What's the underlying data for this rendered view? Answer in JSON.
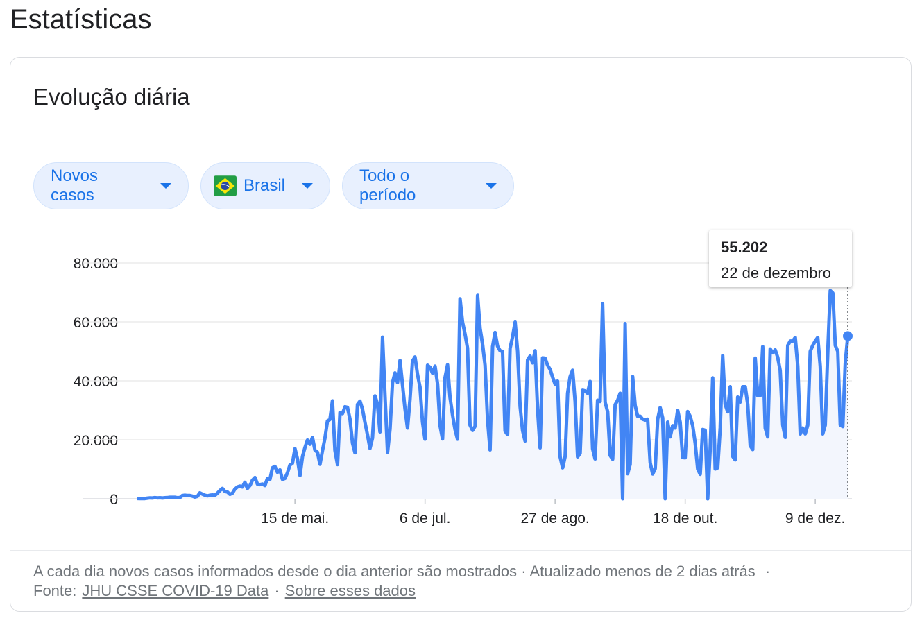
{
  "header": {
    "title": "Estatísticas"
  },
  "card": {
    "title": "Evolução diária"
  },
  "filters": [
    "Novos casos",
    "Brasil",
    "Todo o período"
  ],
  "chart_data": {
    "type": "line",
    "color": "#4285f4",
    "grid": true,
    "ylim": [
      0,
      80000
    ],
    "yticks": [
      0,
      {
        "value": 20000,
        "label": "20.000"
      },
      {
        "value": 40000,
        "label": "40.000"
      },
      {
        "value": 60000,
        "label": "60.000"
      },
      {
        "value": 80000,
        "label": "80.000"
      }
    ],
    "categories": [
      null,
      null,
      null,
      null,
      null,
      null,
      null,
      null,
      null,
      null,
      null,
      null,
      null,
      null,
      null,
      null,
      null,
      null,
      null,
      null,
      null,
      null,
      null,
      null,
      null,
      null,
      null,
      null,
      null,
      null,
      null,
      null,
      null,
      null,
      null,
      null,
      null,
      null,
      null,
      null,
      null,
      null,
      null,
      null,
      null,
      null,
      null,
      null,
      null,
      null,
      null,
      null,
      null,
      null,
      null,
      null,
      null,
      null,
      null,
      null,
      null,
      null,
      null,
      "15 de mai.",
      null,
      null,
      null,
      null,
      null,
      null,
      null,
      null,
      null,
      null,
      null,
      null,
      null,
      null,
      null,
      null,
      null,
      null,
      null,
      null,
      null,
      null,
      null,
      null,
      null,
      null,
      null,
      null,
      null,
      null,
      null,
      null,
      null,
      null,
      null,
      null,
      null,
      null,
      null,
      null,
      null,
      null,
      null,
      null,
      null,
      null,
      null,
      null,
      null,
      null,
      null,
      "6 de jul.",
      null,
      null,
      null,
      null,
      null,
      null,
      null,
      null,
      null,
      null,
      null,
      null,
      null,
      null,
      null,
      null,
      null,
      null,
      null,
      null,
      null,
      null,
      null,
      null,
      null,
      null,
      null,
      null,
      null,
      null,
      null,
      null,
      null,
      null,
      null,
      null,
      null,
      null,
      null,
      null,
      null,
      null,
      null,
      null,
      null,
      null,
      null,
      null,
      null,
      null,
      null,
      "27 de ago.",
      null,
      null,
      null,
      null,
      null,
      null,
      null,
      null,
      null,
      null,
      null,
      null,
      null,
      null,
      null,
      null,
      null,
      null,
      null,
      null,
      null,
      null,
      null,
      null,
      null,
      null,
      null,
      null,
      null,
      null,
      null,
      null,
      null,
      null,
      null,
      null,
      null,
      null,
      null,
      null,
      null,
      null,
      null,
      null,
      null,
      null,
      null,
      null,
      null,
      null,
      null,
      "18 de out.",
      null,
      null,
      null,
      null,
      null,
      null,
      null,
      null,
      null,
      null,
      null,
      null,
      null,
      null,
      null,
      null,
      null,
      null,
      null,
      null,
      null,
      null,
      null,
      null,
      null,
      null,
      null,
      null,
      null,
      null,
      null,
      null,
      null,
      null,
      null,
      null,
      null,
      null,
      null,
      null,
      null,
      null,
      null,
      null,
      null,
      null,
      null,
      null,
      null,
      null,
      null,
      "9 de dez.",
      null,
      null,
      null,
      null,
      null,
      null,
      null,
      null,
      null,
      null,
      null,
      null,
      null
    ],
    "values": [
      100,
      60,
      50,
      80,
      200,
      300,
      250,
      400,
      300,
      350,
      250,
      350,
      400,
      500,
      500,
      500,
      350,
      400,
      1100,
      1200,
      1100,
      1100,
      900,
      600,
      800,
      2000,
      1600,
      1200,
      1000,
      1200,
      1300,
      1200,
      1900,
      2800,
      3500,
      2500,
      2300,
      1500,
      1900,
      3300,
      4000,
      4300,
      4000,
      5600,
      3500,
      4500,
      6300,
      7200,
      5000,
      4800,
      5000,
      4500,
      6900,
      6600,
      10500,
      11000,
      9000,
      9800,
      6600,
      6900,
      8800,
      11400,
      12000,
      17000,
      13500,
      7900,
      14300,
      17400,
      19900,
      18500,
      20800,
      16500,
      15800,
      11700,
      16300,
      20600,
      26400,
      26900,
      33200,
      16400,
      11600,
      29300,
      28900,
      31200,
      31000,
      27000,
      18900,
      15600,
      32000,
      33100,
      30400,
      25900,
      21700,
      17100,
      20600,
      34900,
      32200,
      22700,
      54800,
      34700,
      15800,
      23700,
      39400,
      42700,
      39400,
      46900,
      38700,
      30500,
      24000,
      33800,
      46700,
      48100,
      42200,
      37900,
      26100,
      20200,
      45300,
      44600,
      42600,
      45000,
      39000,
      24800,
      20300,
      41100,
      45400,
      34300,
      28500,
      23500,
      20200,
      67800,
      59900,
      55900,
      51100,
      25000,
      23200,
      24600,
      69000,
      57800,
      52400,
      45300,
      26800,
      16600,
      51600,
      56400,
      51800,
      50200,
      50000,
      23000,
      21800,
      51000,
      54900,
      59900,
      50000,
      31300,
      23100,
      19600,
      47100,
      48400,
      46100,
      50200,
      30400,
      17300,
      47800,
      47700,
      45300,
      43900,
      41300,
      38900,
      39900,
      14200,
      10500,
      14300,
      35800,
      41400,
      43600,
      33000,
      14200,
      15400,
      36800,
      36600,
      35800,
      39800,
      17000,
      13500,
      33400,
      33000,
      66200,
      32700,
      29500,
      14700,
      13400,
      31900,
      33400,
      35800,
      0,
      59400,
      8500,
      11700,
      41400,
      31700,
      28000,
      28000,
      27000,
      26700,
      27000,
      12200,
      8400,
      10200,
      27000,
      30900,
      27400,
      0,
      26000,
      21000,
      24800,
      24000,
      30000,
      26000,
      14000,
      13900,
      29600,
      28000,
      24800,
      18800,
      10100,
      8300,
      23500,
      23200,
      0,
      17000,
      41000,
      10100,
      10500,
      24000,
      48600,
      32000,
      29500,
      38000,
      14400,
      13200,
      34500,
      32800,
      38000,
      38000,
      32000,
      18000,
      16700,
      47700,
      35000,
      35000,
      51600,
      24000,
      21000,
      50800,
      49500,
      50500,
      48000,
      43500,
      25000,
      20800,
      52000,
      53500,
      53500,
      54700,
      45000,
      22000,
      24000,
      22000,
      25000,
      50000,
      52000,
      53500,
      54700,
      45000,
      22000,
      25000,
      50000,
      70600,
      69800,
      52000,
      50000,
      25000,
      24500,
      46000,
      55202
    ],
    "tooltip": {
      "value_label": "55.202",
      "date_label": "22 de dezembro"
    }
  },
  "footer": {
    "note": "A cada dia novos casos informados desde o dia anterior são mostrados",
    "separator": "·",
    "updated": "Atualizado menos de 2 dias atrás",
    "source_label": "Fonte:",
    "links": [
      "JHU CSSE COVID-19 Data",
      "Sobre esses dados"
    ]
  }
}
